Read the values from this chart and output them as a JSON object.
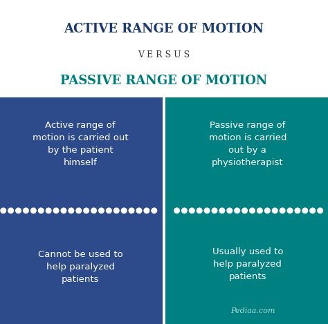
{
  "title1": "ACTIVE RANGE OF MOTION",
  "versus": "V E R S U S",
  "title2": "PASSIVE RANGE OF MOTION",
  "title1_color": "#1a3a6b",
  "versus_color": "#333333",
  "title2_color": "#007b7b",
  "bg_color": "#ffffff",
  "left_bg": "#2d4a8a",
  "right_bg": "#008080",
  "left_text1": "Active range of\nmotion is carried out\nby the patient\nhimself",
  "right_text1": "Passive range of\nmotion is carried\nout by a\nphysiotherapist",
  "left_text2": "Cannot be used to\nhelp paralyzed\npatients",
  "right_text2": "Usually used to\nhelp paralyzed\npatients",
  "cell_text_color": "#ffffff",
  "watermark": "Pediaa.com",
  "watermark_color": "#aadddd"
}
